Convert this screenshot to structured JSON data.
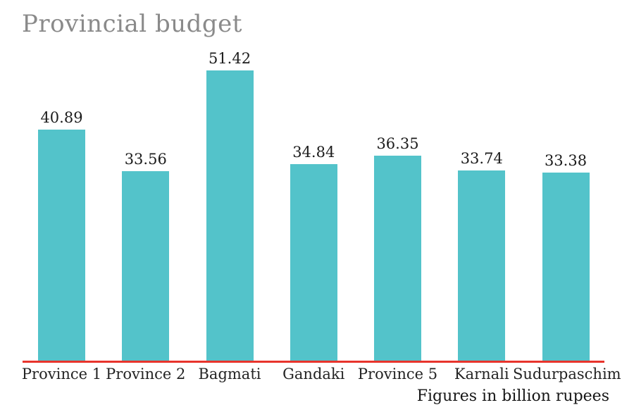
{
  "title": "Provincial budget",
  "footer_note": "Figures in billion rupees",
  "colors": {
    "bar": "#53c3ca",
    "baseline": "#e8342c",
    "title_text": "#8a8a8a",
    "label_text": "#1c1c1c"
  },
  "chart_data": {
    "type": "bar",
    "title": "Provincial budget",
    "categories": [
      "Province 1",
      "Province 2",
      "Bagmati",
      "Gandaki",
      "Province 5",
      "Karnali",
      "Sudurpaschim"
    ],
    "values": [
      40.89,
      33.56,
      51.42,
      34.84,
      36.35,
      33.74,
      33.38
    ],
    "value_labels": [
      "40.89",
      "33.56",
      "51.42",
      "34.84",
      "36.35",
      "33.74",
      "33.38"
    ],
    "xlabel": "",
    "ylabel": "",
    "annotation": "Figures in billion rupees",
    "ylim": [
      0,
      55
    ],
    "grid": false,
    "legend": false,
    "bar_color": "#53c3ca",
    "axis_line_color": "#e8342c"
  }
}
